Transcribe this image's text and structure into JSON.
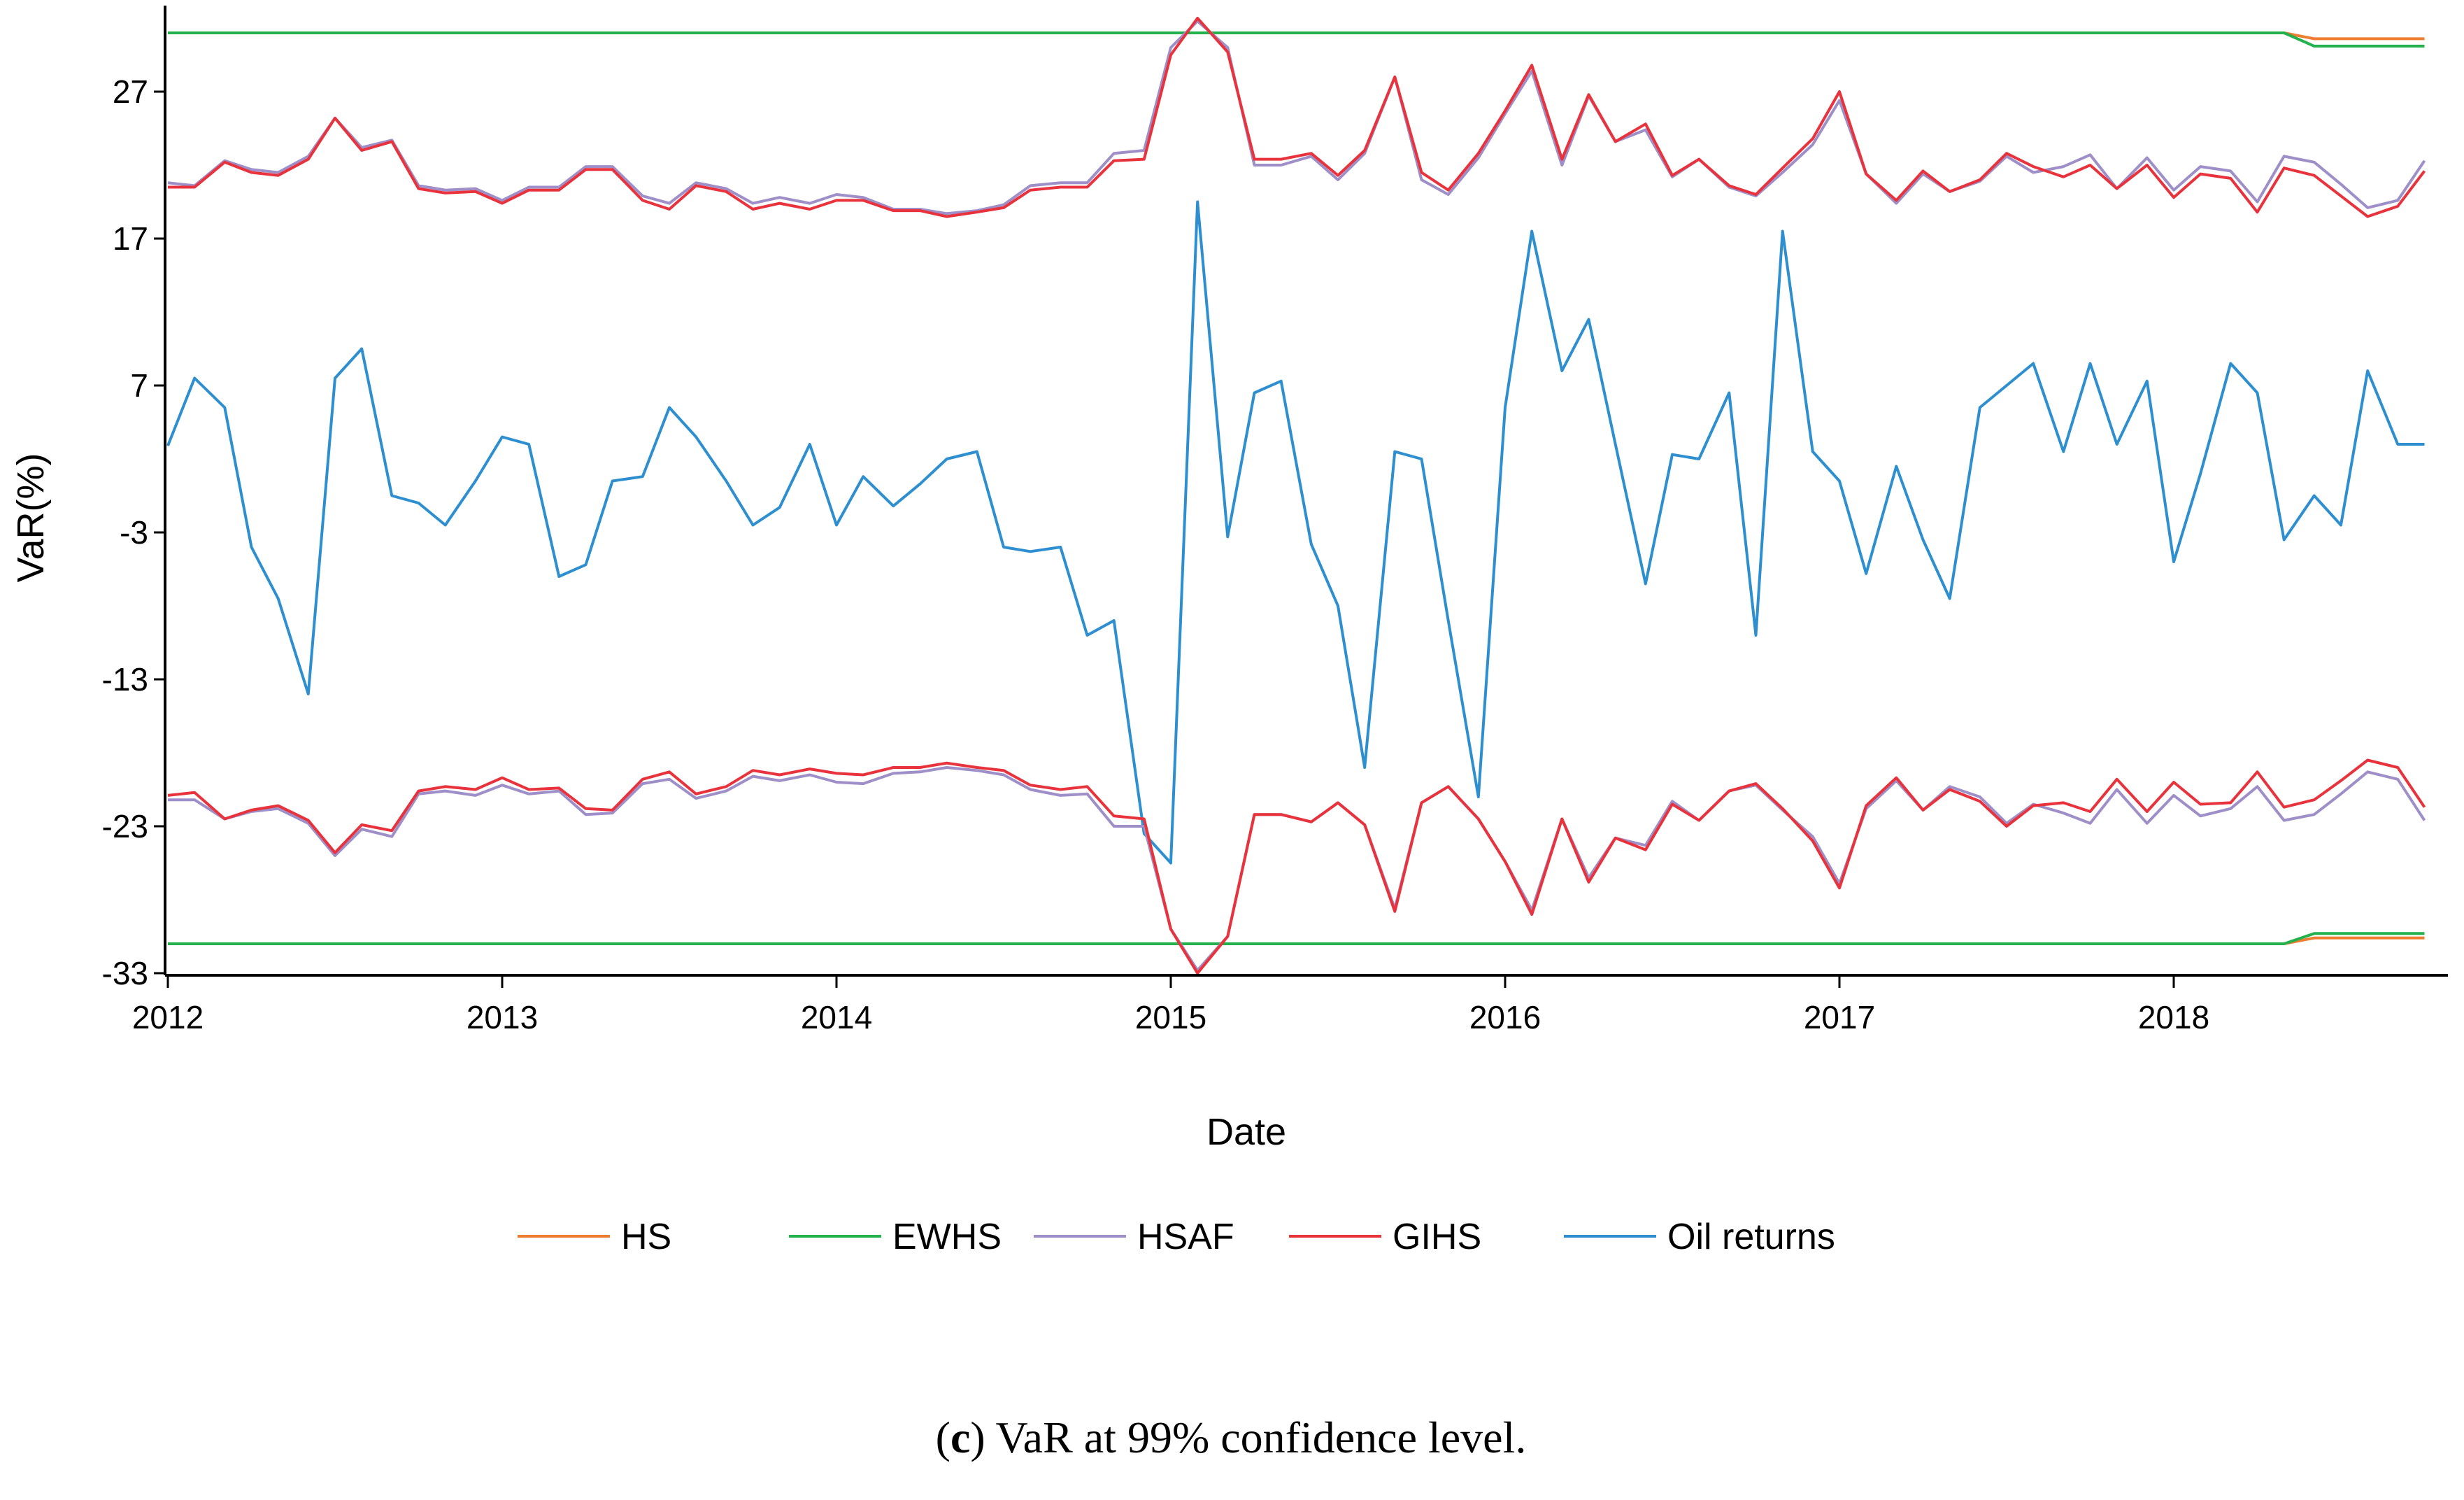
{
  "chart_data": {
    "type": "line",
    "title": "",
    "xlabel": "Date",
    "ylabel": "VaR(%)",
    "caption_prefix": "(",
    "caption_letter": "c",
    "caption_rest": ") VaR at 99% confidence level.",
    "xlim": [
      2012.0,
      2018.8
    ],
    "ylim": [
      -33,
      32
    ],
    "yticks": [
      "27",
      "17",
      "7",
      "-3",
      "-13",
      "-23",
      "-33"
    ],
    "ytick_values": [
      27,
      17,
      7,
      -3,
      -13,
      -23,
      -33
    ],
    "xticks": [
      "2012",
      "2013",
      "2014",
      "2015",
      "2016",
      "2017",
      "2018"
    ],
    "xtick_values": [
      2012,
      2013,
      2014,
      2015,
      2016,
      2017,
      2018
    ],
    "legend_position": "bottom",
    "colors": {
      "HS": "#ED7D31",
      "EWHS": "#22B14C",
      "HSAF": "#9E8FC8",
      "GIHS": "#E8323C",
      "Oil returns": "#2E8FD0"
    },
    "x": [
      2012.0,
      2012.08,
      2012.17,
      2012.25,
      2012.33,
      2012.42,
      2012.5,
      2012.58,
      2012.67,
      2012.75,
      2012.83,
      2012.92,
      2013.0,
      2013.08,
      2013.17,
      2013.25,
      2013.33,
      2013.42,
      2013.5,
      2013.58,
      2013.67,
      2013.75,
      2013.83,
      2013.92,
      2014.0,
      2014.08,
      2014.17,
      2014.25,
      2014.33,
      2014.42,
      2014.5,
      2014.58,
      2014.67,
      2014.75,
      2014.83,
      2014.92,
      2015.0,
      2015.08,
      2015.17,
      2015.25,
      2015.33,
      2015.42,
      2015.5,
      2015.58,
      2015.67,
      2015.75,
      2015.83,
      2015.92,
      2016.0,
      2016.08,
      2016.17,
      2016.25,
      2016.33,
      2016.42,
      2016.5,
      2016.58,
      2016.67,
      2016.75,
      2016.83,
      2016.92,
      2017.0,
      2017.08,
      2017.17,
      2017.25,
      2017.33,
      2017.42,
      2017.5,
      2017.58,
      2017.67,
      2017.75,
      2017.83,
      2017.92,
      2018.0,
      2018.08,
      2018.17,
      2018.25,
      2018.33,
      2018.42,
      2018.5,
      2018.58,
      2018.67,
      2018.75
    ],
    "series": [
      {
        "name": "HS",
        "upper": [
          31,
          31,
          31,
          31,
          31,
          31,
          31,
          31,
          31,
          31,
          31,
          31,
          31,
          31,
          31,
          31,
          31,
          31,
          31,
          31,
          31,
          31,
          31,
          31,
          31,
          31,
          31,
          31,
          31,
          31,
          31,
          31,
          31,
          31,
          31,
          31,
          31,
          31,
          31,
          31,
          31,
          31,
          31,
          31,
          31,
          31,
          31,
          31,
          31,
          31,
          31,
          31,
          31,
          31,
          31,
          31,
          31,
          31,
          31,
          31,
          31,
          31,
          31,
          31,
          31,
          31,
          31,
          31,
          31,
          31,
          31,
          31,
          31,
          31,
          31,
          31,
          31,
          30.6,
          30.6,
          30.6,
          30.6,
          30.6
        ],
        "lower": [
          -31,
          -31,
          -31,
          -31,
          -31,
          -31,
          -31,
          -31,
          -31,
          -31,
          -31,
          -31,
          -31,
          -31,
          -31,
          -31,
          -31,
          -31,
          -31,
          -31,
          -31,
          -31,
          -31,
          -31,
          -31,
          -31,
          -31,
          -31,
          -31,
          -31,
          -31,
          -31,
          -31,
          -31,
          -31,
          -31,
          -31,
          -31,
          -31,
          -31,
          -31,
          -31,
          -31,
          -31,
          -31,
          -31,
          -31,
          -31,
          -31,
          -31,
          -31,
          -31,
          -31,
          -31,
          -31,
          -31,
          -31,
          -31,
          -31,
          -31,
          -31,
          -31,
          -31,
          -31,
          -31,
          -31,
          -31,
          -31,
          -31,
          -31,
          -31,
          -31,
          -31,
          -31,
          -31,
          -31,
          -31,
          -30.6,
          -30.6,
          -30.6,
          -30.6,
          -30.6
        ]
      },
      {
        "name": "EWHS",
        "upper": [
          31,
          31,
          31,
          31,
          31,
          31,
          31,
          31,
          31,
          31,
          31,
          31,
          31,
          31,
          31,
          31,
          31,
          31,
          31,
          31,
          31,
          31,
          31,
          31,
          31,
          31,
          31,
          31,
          31,
          31,
          31,
          31,
          31,
          31,
          31,
          31,
          31,
          31,
          31,
          31,
          31,
          31,
          31,
          31,
          31,
          31,
          31,
          31,
          31,
          31,
          31,
          31,
          31,
          31,
          31,
          31,
          31,
          31,
          31,
          31,
          31,
          31,
          31,
          31,
          31,
          31,
          31,
          31,
          31,
          31,
          31,
          31,
          31,
          31,
          31,
          31,
          31,
          30.1,
          30.1,
          30.1,
          30.1,
          30.1
        ],
        "lower": [
          -31,
          -31,
          -31,
          -31,
          -31,
          -31,
          -31,
          -31,
          -31,
          -31,
          -31,
          -31,
          -31,
          -31,
          -31,
          -31,
          -31,
          -31,
          -31,
          -31,
          -31,
          -31,
          -31,
          -31,
          -31,
          -31,
          -31,
          -31,
          -31,
          -31,
          -31,
          -31,
          -31,
          -31,
          -31,
          -31,
          -31,
          -31,
          -31,
          -31,
          -31,
          -31,
          -31,
          -31,
          -31,
          -31,
          -31,
          -31,
          -31,
          -31,
          -31,
          -31,
          -31,
          -31,
          -31,
          -31,
          -31,
          -31,
          -31,
          -31,
          -31,
          -31,
          -31,
          -31,
          -31,
          -31,
          -31,
          -31,
          -31,
          -31,
          -31,
          -31,
          -31,
          -31,
          -31,
          -31,
          -31,
          -30.3,
          -30.3,
          -30.3,
          -30.3,
          -30.3
        ]
      },
      {
        "name": "HSAF",
        "upper": [
          20.8,
          20.6,
          22.3,
          21.7,
          21.5,
          22.6,
          25.2,
          23.2,
          23.7,
          20.6,
          20.3,
          20.4,
          19.6,
          20.5,
          20.5,
          21.9,
          21.9,
          19.9,
          19.4,
          20.8,
          20.4,
          19.4,
          19.8,
          19.4,
          20.0,
          19.8,
          19.0,
          19.0,
          18.7,
          18.9,
          19.3,
          20.6,
          20.8,
          20.8,
          22.8,
          23.0,
          30.0,
          31.8,
          30.0,
          22.0,
          22.0,
          22.6,
          21.0,
          22.8,
          28.0,
          21.0,
          20.0,
          22.5,
          25.5,
          28.4,
          22.0,
          26.7,
          23.6,
          24.4,
          21.2,
          22.4,
          20.5,
          19.9,
          21.5,
          23.4,
          26.4,
          21.4,
          19.4,
          21.4,
          20.2,
          20.9,
          22.6,
          21.5,
          21.9,
          22.7,
          20.4,
          22.5,
          20.3,
          21.9,
          21.6,
          19.5,
          22.6,
          22.2,
          20.7,
          19.1,
          19.6,
          22.3
        ],
        "lower": [
          -21.2,
          -21.2,
          -22.5,
          -22.0,
          -21.8,
          -22.8,
          -25.0,
          -23.2,
          -23.7,
          -20.8,
          -20.6,
          -20.9,
          -20.2,
          -20.8,
          -20.6,
          -22.2,
          -22.1,
          -20.1,
          -19.8,
          -21.1,
          -20.6,
          -19.6,
          -19.9,
          -19.5,
          -20.0,
          -20.1,
          -19.4,
          -19.3,
          -19.0,
          -19.2,
          -19.5,
          -20.5,
          -20.9,
          -20.8,
          -23.0,
          -23.0,
          -30.0,
          -32.8,
          -30.5,
          -22.2,
          -22.2,
          -22.7,
          -21.4,
          -22.9,
          -28.6,
          -21.4,
          -20.3,
          -22.5,
          -25.4,
          -28.7,
          -22.5,
          -26.5,
          -23.8,
          -24.3,
          -21.3,
          -22.6,
          -20.6,
          -20.2,
          -21.9,
          -23.7,
          -26.9,
          -21.8,
          -19.9,
          -21.9,
          -20.3,
          -21.0,
          -22.8,
          -21.5,
          -22.1,
          -22.8,
          -20.5,
          -22.8,
          -20.9,
          -22.3,
          -21.8,
          -20.3,
          -22.6,
          -22.2,
          -20.8,
          -19.3,
          -19.8,
          -22.6
        ]
      },
      {
        "name": "GIHS",
        "upper": [
          20.5,
          20.5,
          22.2,
          21.5,
          21.3,
          22.4,
          25.2,
          23.0,
          23.6,
          20.4,
          20.1,
          20.2,
          19.4,
          20.3,
          20.3,
          21.7,
          21.7,
          19.6,
          19.0,
          20.6,
          20.2,
          19.0,
          19.4,
          19.0,
          19.6,
          19.6,
          18.9,
          18.9,
          18.5,
          18.8,
          19.1,
          20.3,
          20.5,
          20.5,
          22.3,
          22.4,
          29.5,
          32.0,
          29.7,
          22.4,
          22.4,
          22.8,
          21.3,
          23.0,
          28.0,
          21.5,
          20.3,
          22.8,
          25.7,
          28.8,
          22.4,
          26.8,
          23.6,
          24.8,
          21.3,
          22.4,
          20.6,
          20.0,
          21.8,
          23.8,
          27.0,
          21.4,
          19.6,
          21.6,
          20.2,
          21.0,
          22.8,
          21.9,
          21.2,
          22.0,
          20.4,
          22.0,
          19.8,
          21.4,
          21.1,
          18.8,
          21.8,
          21.3,
          19.9,
          18.5,
          19.2,
          21.6
        ],
        "lower": [
          -20.9,
          -20.7,
          -22.5,
          -21.9,
          -21.6,
          -22.6,
          -24.8,
          -22.9,
          -23.3,
          -20.6,
          -20.3,
          -20.5,
          -19.7,
          -20.5,
          -20.4,
          -21.8,
          -21.9,
          -19.8,
          -19.3,
          -20.8,
          -20.3,
          -19.2,
          -19.5,
          -19.1,
          -19.4,
          -19.5,
          -19.0,
          -19.0,
          -18.7,
          -19.0,
          -19.2,
          -20.2,
          -20.5,
          -20.3,
          -22.3,
          -22.5,
          -30.0,
          -33.0,
          -30.5,
          -22.2,
          -22.2,
          -22.7,
          -21.4,
          -22.9,
          -28.8,
          -21.4,
          -20.3,
          -22.5,
          -25.4,
          -29.0,
          -22.5,
          -26.8,
          -23.8,
          -24.6,
          -21.5,
          -22.6,
          -20.6,
          -20.1,
          -21.8,
          -24.0,
          -27.2,
          -21.6,
          -19.7,
          -21.9,
          -20.5,
          -21.3,
          -23.0,
          -21.6,
          -21.4,
          -22.0,
          -19.8,
          -22.0,
          -20.0,
          -21.5,
          -21.4,
          -19.3,
          -21.7,
          -21.2,
          -19.9,
          -18.5,
          -19.0,
          -21.7
        ]
      },
      {
        "name": "Oil returns",
        "values": [
          2.9,
          7.5,
          5.5,
          -4.0,
          -7.5,
          -14.0,
          7.5,
          9.5,
          -0.5,
          -1.0,
          -2.5,
          0.5,
          3.5,
          3.0,
          -6.0,
          -5.2,
          0.5,
          0.8,
          5.5,
          3.5,
          0.5,
          -2.5,
          -1.3,
          3.0,
          -2.5,
          0.8,
          -1.2,
          0.3,
          2.0,
          2.5,
          -4.0,
          -4.3,
          -4.0,
          -10.0,
          -9.0,
          -23.5,
          -25.5,
          19.5,
          -3.3,
          6.5,
          7.3,
          -3.8,
          -8.0,
          -19.0,
          2.5,
          2.0,
          -9.0,
          -21.0,
          5.5,
          17.5,
          8.0,
          11.5,
          3.0,
          -6.5,
          2.3,
          2.0,
          6.5,
          -10.0,
          17.5,
          2.5,
          0.5,
          -5.8,
          1.5,
          -3.5,
          -7.5,
          5.5,
          7.0,
          8.5,
          2.5,
          8.5,
          3.0,
          7.3,
          -5.0,
          1.0,
          8.5,
          6.5,
          -3.5,
          -0.5,
          -2.5,
          8.0,
          3.0,
          3.0
        ]
      }
    ]
  }
}
